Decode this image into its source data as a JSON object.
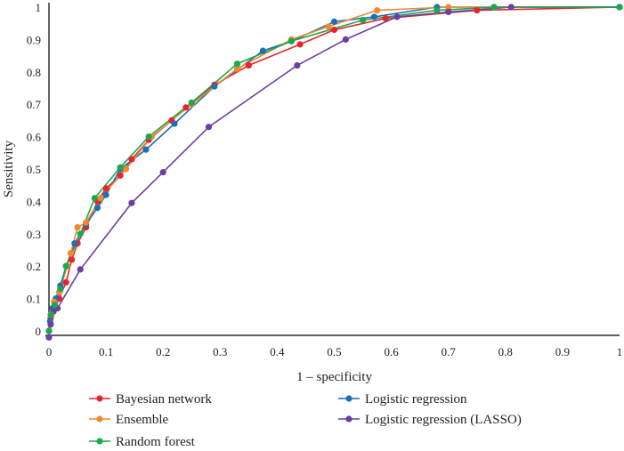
{
  "chart_data": {
    "type": "line",
    "title": "",
    "xlabel": "1 – specificity",
    "ylabel": "Sensitivity",
    "xlim": [
      0,
      1
    ],
    "ylim": [
      0,
      1
    ],
    "xticks": [
      "0",
      "0.1",
      "0.2",
      "0.3",
      "0.4",
      "0.5",
      "0.6",
      "0.7",
      "0.8",
      "0.9",
      "1"
    ],
    "yticks": [
      "0",
      "0.1",
      "0.2",
      "0.3",
      "0.4",
      "0.5",
      "0.6",
      "0.7",
      "0.8",
      "0.9",
      "1"
    ],
    "grid": false,
    "legend_position": "bottom",
    "series": [
      {
        "name": "Bayesian network",
        "color": "#e8262a",
        "points": [
          [
            0,
            0
          ],
          [
            0.003,
            0.04
          ],
          [
            0.01,
            0.07
          ],
          [
            0.018,
            0.1
          ],
          [
            0.03,
            0.15
          ],
          [
            0.04,
            0.22
          ],
          [
            0.05,
            0.27
          ],
          [
            0.065,
            0.32
          ],
          [
            0.085,
            0.4
          ],
          [
            0.1,
            0.44
          ],
          [
            0.125,
            0.48
          ],
          [
            0.145,
            0.53
          ],
          [
            0.175,
            0.59
          ],
          [
            0.215,
            0.65
          ],
          [
            0.24,
            0.69
          ],
          [
            0.29,
            0.76
          ],
          [
            0.35,
            0.82
          ],
          [
            0.44,
            0.885
          ],
          [
            0.5,
            0.93
          ],
          [
            0.59,
            0.965
          ],
          [
            0.75,
            0.99
          ],
          [
            1,
            1
          ]
        ]
      },
      {
        "name": "Logistic regression",
        "color": "#1f6fb5",
        "points": [
          [
            0,
            0
          ],
          [
            0.002,
            0.03
          ],
          [
            0.006,
            0.07
          ],
          [
            0.012,
            0.1
          ],
          [
            0.02,
            0.14
          ],
          [
            0.03,
            0.2
          ],
          [
            0.045,
            0.27
          ],
          [
            0.065,
            0.33
          ],
          [
            0.085,
            0.38
          ],
          [
            0.1,
            0.42
          ],
          [
            0.125,
            0.5
          ],
          [
            0.17,
            0.56
          ],
          [
            0.22,
            0.64
          ],
          [
            0.29,
            0.755
          ],
          [
            0.375,
            0.865
          ],
          [
            0.425,
            0.895
          ],
          [
            0.5,
            0.955
          ],
          [
            0.57,
            0.97
          ],
          [
            0.68,
            1
          ],
          [
            0.78,
            1
          ],
          [
            1,
            1
          ]
        ]
      },
      {
        "name": "Ensemble",
        "color": "#f08a30",
        "points": [
          [
            0,
            0
          ],
          [
            0.003,
            0.05
          ],
          [
            0.009,
            0.09
          ],
          [
            0.018,
            0.12
          ],
          [
            0.032,
            0.2
          ],
          [
            0.038,
            0.24
          ],
          [
            0.05,
            0.32
          ],
          [
            0.065,
            0.335
          ],
          [
            0.09,
            0.41
          ],
          [
            0.135,
            0.5
          ],
          [
            0.18,
            0.6
          ],
          [
            0.25,
            0.7
          ],
          [
            0.33,
            0.81
          ],
          [
            0.425,
            0.9
          ],
          [
            0.49,
            0.94
          ],
          [
            0.575,
            0.99
          ],
          [
            0.7,
            1
          ],
          [
            0.78,
            1
          ],
          [
            1,
            1
          ]
        ]
      },
      {
        "name": "Logistic regression (LASSO)",
        "color": "#6b3fa0",
        "points": [
          [
            0,
            -0.02
          ],
          [
            0.003,
            0.02
          ],
          [
            0.008,
            0.06
          ],
          [
            0.015,
            0.07
          ],
          [
            0.055,
            0.19
          ],
          [
            0.145,
            0.395
          ],
          [
            0.2,
            0.49
          ],
          [
            0.28,
            0.63
          ],
          [
            0.435,
            0.82
          ],
          [
            0.52,
            0.9
          ],
          [
            0.61,
            0.97
          ],
          [
            0.7,
            0.985
          ],
          [
            0.81,
            1
          ],
          [
            1,
            1
          ]
        ]
      },
      {
        "name": "Random forest",
        "color": "#1aa84f",
        "points": [
          [
            0,
            0
          ],
          [
            0.004,
            0.05
          ],
          [
            0.01,
            0.08
          ],
          [
            0.02,
            0.13
          ],
          [
            0.03,
            0.2
          ],
          [
            0.055,
            0.3
          ],
          [
            0.08,
            0.41
          ],
          [
            0.125,
            0.505
          ],
          [
            0.175,
            0.6
          ],
          [
            0.25,
            0.705
          ],
          [
            0.33,
            0.825
          ],
          [
            0.425,
            0.895
          ],
          [
            0.55,
            0.96
          ],
          [
            0.68,
            0.99
          ],
          [
            0.78,
            1
          ],
          [
            1,
            1
          ]
        ]
      }
    ]
  }
}
